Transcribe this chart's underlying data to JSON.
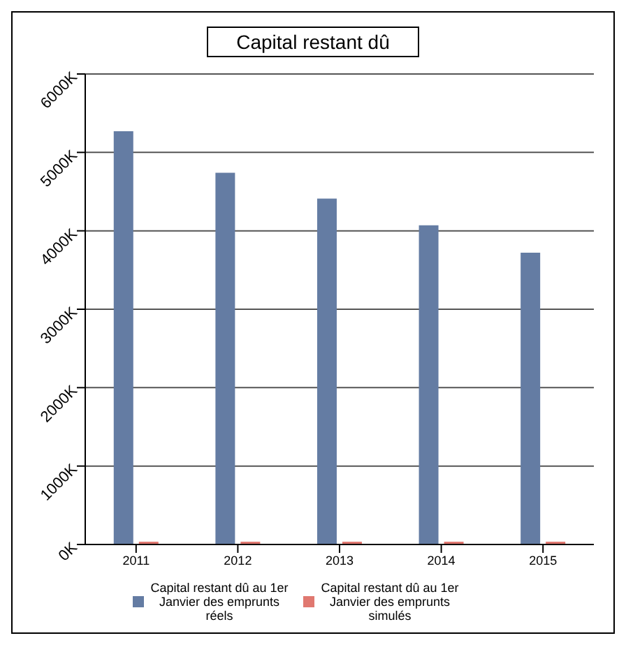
{
  "chart_data": {
    "type": "bar",
    "title": "Capital restant dû",
    "categories": [
      "2011",
      "2012",
      "2013",
      "2014",
      "2015"
    ],
    "series": [
      {
        "name": "Capital restant dû au 1er Janvier des emprunts réels",
        "color": "#647ca3",
        "values": [
          5270,
          4740,
          4410,
          4070,
          3720
        ]
      },
      {
        "name": "Capital restant dû au 1er Janvier des emprunts simulés",
        "color": "#e07870",
        "values": [
          0,
          0,
          0,
          0,
          0
        ]
      }
    ],
    "ylim": [
      0,
      6000
    ],
    "yticks": [
      {
        "value": 0,
        "label": "0K"
      },
      {
        "value": 1000,
        "label": "1000K"
      },
      {
        "value": 2000,
        "label": "2000K"
      },
      {
        "value": 3000,
        "label": "3000K"
      },
      {
        "value": 4000,
        "label": "4000K"
      },
      {
        "value": 5000,
        "label": "5000K"
      },
      {
        "value": 6000,
        "label": "6000K"
      }
    ],
    "grid": "y",
    "legend": "bottom"
  }
}
